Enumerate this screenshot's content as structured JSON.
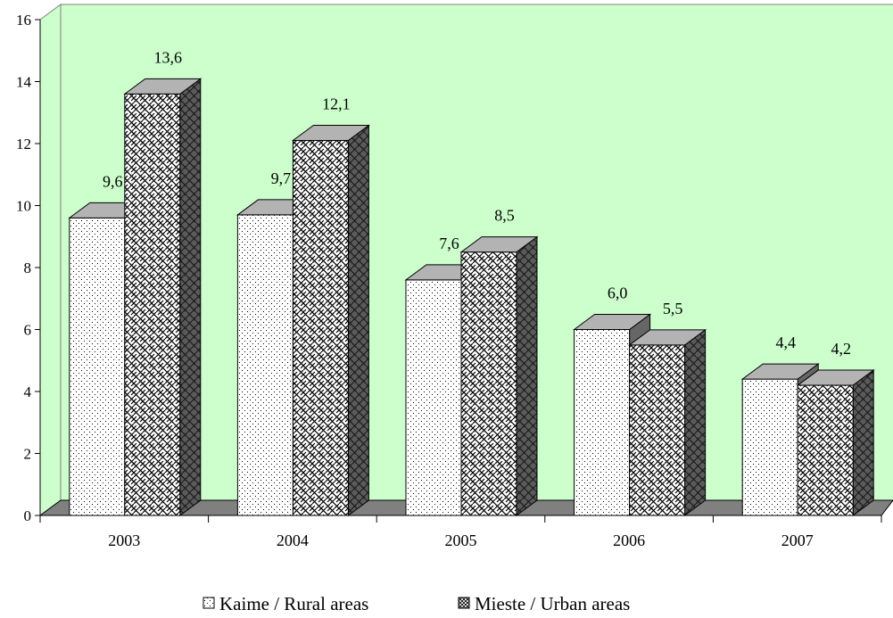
{
  "chart_data": {
    "type": "bar",
    "title": "",
    "xlabel": "",
    "ylabel": "",
    "categories": [
      "2003",
      "2004",
      "2005",
      "2006",
      "2007"
    ],
    "series": [
      {
        "name": "Kaime / Rural areas",
        "values": [
          9.6,
          9.7,
          7.6,
          6.0,
          4.4
        ],
        "labels": [
          "9,6",
          "9,7",
          "7,6",
          "6,0",
          "4,4"
        ]
      },
      {
        "name": "Mieste / Urban areas",
        "values": [
          13.6,
          12.1,
          8.5,
          5.5,
          4.2
        ],
        "labels": [
          "13,6",
          "12,1",
          "8,5",
          "5,5",
          "4,2"
        ]
      }
    ],
    "ylim": [
      0,
      16
    ],
    "yticks": [
      0,
      2,
      4,
      6,
      8,
      10,
      12,
      14,
      16
    ],
    "grid": false,
    "legend_position": "bottom",
    "three_d": true,
    "colors": {
      "plot_wall": "#ccffcc",
      "floor": "#808080",
      "bar_top": "#b3b3b3",
      "bar_side": "#666666",
      "rural_fill": "#ffffff",
      "urban_fill": "#ffffff"
    }
  }
}
